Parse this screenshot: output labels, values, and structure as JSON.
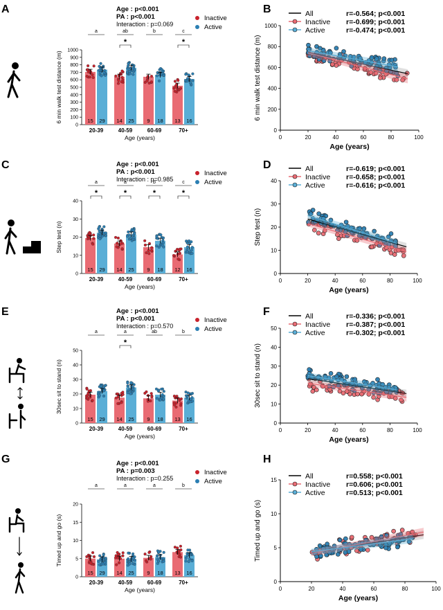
{
  "colors": {
    "inactive": "#e96b73",
    "inactive_dot": "#c8222c",
    "active": "#5aaed6",
    "active_dot": "#2b7fb3",
    "grid_axis": "#000000"
  },
  "legend_labels": {
    "inactive": "Inactive",
    "active": "Active",
    "all": "All"
  },
  "icons": [
    "walking-person-icon",
    "step-climb-icon",
    "sit-to-stand-icon",
    "timed-up-and-go-icon"
  ],
  "chart_data": [
    {
      "panel": "A",
      "type": "bar",
      "categories": [
        "20-39",
        "40-59",
        "60-69",
        "70+"
      ],
      "xlabel": "Age (years)",
      "ylabel": "6 min walk test distance (m)",
      "ylim": [
        0,
        1000
      ],
      "yticks": [
        0,
        100,
        200,
        300,
        400,
        500,
        600,
        700,
        800,
        900,
        1000
      ],
      "stats": {
        "age": "Age : p<0.001",
        "pa": "PA : p<0.001",
        "interaction": "Interaction : p=0.069"
      },
      "group_letters": [
        "a",
        "ab",
        "b",
        "c"
      ],
      "significance_stars": [
        false,
        true,
        false,
        true
      ],
      "series": [
        {
          "name": "Inactive",
          "values": [
            705,
            640,
            640,
            520
          ],
          "n": [
            "15",
            "14",
            "9",
            "13"
          ]
        },
        {
          "name": "Active",
          "values": [
            735,
            760,
            665,
            610
          ],
          "n": [
            "29",
            "25",
            "18",
            "16"
          ]
        }
      ]
    },
    {
      "panel": "B",
      "type": "scatter",
      "xlabel": "Age (years)",
      "ylabel": "6 min walk test distance (m)",
      "xlim": [
        0,
        100
      ],
      "ylim": [
        0,
        1000
      ],
      "xticks": [
        0,
        20,
        40,
        60,
        80,
        100
      ],
      "yticks": [
        0,
        200,
        400,
        600,
        800,
        1000
      ],
      "fits": [
        {
          "name": "All",
          "r_label": "r=-0.564; p<0.001",
          "x_range": [
            20,
            92
          ],
          "y_range": [
            745,
            540
          ]
        },
        {
          "name": "Inactive",
          "r_label": "r=-0.699; p<0.001",
          "x_range": [
            20,
            92
          ],
          "y_range": [
            740,
            490
          ]
        },
        {
          "name": "Active",
          "r_label": "r=-0.474; p<0.001",
          "x_range": [
            20,
            85
          ],
          "y_range": [
            760,
            605
          ]
        }
      ]
    },
    {
      "panel": "C",
      "type": "bar",
      "categories": [
        "20-39",
        "40-59",
        "60-69",
        "70+"
      ],
      "xlabel": "Age (years)",
      "ylabel": "Step test (n)",
      "ylim": [
        0,
        40
      ],
      "yticks": [
        0,
        10,
        20,
        30,
        40
      ],
      "stats": {
        "age": "Age : p<0.001",
        "pa": "PA : p<0.001",
        "interaction": "Interaction : p=0.985"
      },
      "group_letters": [
        "a",
        "a",
        "b",
        "c"
      ],
      "significance_stars": [
        true,
        true,
        true,
        true
      ],
      "series": [
        {
          "name": "Inactive",
          "values": [
            19.5,
            16.5,
            14.5,
            10.5
          ],
          "n": [
            "15",
            "14",
            "9",
            "12"
          ]
        },
        {
          "name": "Active",
          "values": [
            22.5,
            21.5,
            18,
            14.5
          ],
          "n": [
            "29",
            "25",
            "18",
            "16"
          ]
        }
      ]
    },
    {
      "panel": "D",
      "type": "scatter",
      "xlabel": "Age (years)",
      "ylabel": "Step test (n)",
      "xlim": [
        0,
        100
      ],
      "ylim": [
        0,
        40
      ],
      "xticks": [
        0,
        20,
        40,
        60,
        80,
        100
      ],
      "yticks": [
        0,
        10,
        20,
        30,
        40
      ],
      "fits": [
        {
          "name": "All",
          "r_label": "r=-0.619; p<0.001",
          "x_range": [
            20,
            92
          ],
          "y_range": [
            23.5,
            11.5
          ]
        },
        {
          "name": "Inactive",
          "r_label": "r=-0.658; p<0.001",
          "x_range": [
            20,
            92
          ],
          "y_range": [
            21.5,
            9.5
          ]
        },
        {
          "name": "Active",
          "r_label": "r=-0.616; p<0.001",
          "x_range": [
            20,
            85
          ],
          "y_range": [
            25,
            13
          ]
        }
      ]
    },
    {
      "panel": "E",
      "type": "bar",
      "categories": [
        "20-39",
        "40-59",
        "60-69",
        "70+"
      ],
      "xlabel": "Age (years)",
      "ylabel": "30sec sit to stand (n)",
      "ylim": [
        0,
        50
      ],
      "yticks": [
        0,
        10,
        20,
        30,
        40,
        50
      ],
      "stats": {
        "age": "Age : p<0.001",
        "pa": "PA : p<0.001",
        "interaction": "Interaction : p=0.570"
      },
      "group_letters": [
        "a",
        "a",
        "ab",
        "b"
      ],
      "significance_stars": [
        false,
        true,
        false,
        false
      ],
      "series": [
        {
          "name": "Inactive",
          "values": [
            19.5,
            17.5,
            17,
            15.5
          ],
          "n": [
            "15",
            "14",
            "9",
            "13"
          ]
        },
        {
          "name": "Active",
          "values": [
            22,
            24.5,
            19.5,
            17.5
          ],
          "n": [
            "29",
            "25",
            "18",
            "16"
          ]
        }
      ]
    },
    {
      "panel": "F",
      "type": "scatter",
      "xlabel": "Age (years)",
      "ylabel": "30sec sit to stand (n)",
      "xlim": [
        0,
        100
      ],
      "ylim": [
        0,
        50
      ],
      "xticks": [
        0,
        20,
        40,
        60,
        80,
        100
      ],
      "yticks": [
        0,
        10,
        20,
        30,
        40,
        50
      ],
      "fits": [
        {
          "name": "All",
          "r_label": "r=-0.336; p<0.001",
          "x_range": [
            20,
            92
          ],
          "y_range": [
            23.5,
            15.5
          ]
        },
        {
          "name": "Inactive",
          "r_label": "r=-0.387; p<0.001",
          "x_range": [
            20,
            92
          ],
          "y_range": [
            21,
            13.5
          ]
        },
        {
          "name": "Active",
          "r_label": "r=-0.302; p<0.001",
          "x_range": [
            20,
            85
          ],
          "y_range": [
            25,
            17.5
          ]
        }
      ]
    },
    {
      "panel": "G",
      "type": "bar",
      "categories": [
        "20-39",
        "40-59",
        "60-69",
        "70+"
      ],
      "xlabel": "Age (years)",
      "ylabel": "Timed up and go (s)",
      "ylim": [
        0,
        20
      ],
      "yticks": [
        0,
        5,
        10,
        15,
        20
      ],
      "stats": {
        "age": "Age : p<0.001",
        "pa": "PA : p=0.003",
        "interaction": "Interaction : p=0.255"
      },
      "group_letters": [
        "a",
        "a",
        "a",
        "b"
      ],
      "significance_stars": [
        false,
        false,
        false,
        false
      ],
      "series": [
        {
          "name": "Inactive",
          "values": [
            5.0,
            5.0,
            5.2,
            6.8
          ],
          "n": [
            "15",
            "14",
            "9",
            "13"
          ]
        },
        {
          "name": "Active",
          "values": [
            4.8,
            4.9,
            5.4,
            5.9
          ],
          "n": [
            "29",
            "25",
            "18",
            "16"
          ]
        }
      ]
    },
    {
      "panel": "H",
      "type": "scatter",
      "xlabel": "Age (years)",
      "ylabel": "Timed up and go (s)",
      "xlim": [
        0,
        100
      ],
      "ylim": [
        0,
        15
      ],
      "xticks": [
        0,
        20,
        40,
        60,
        80,
        100
      ],
      "yticks": [
        0,
        5,
        10,
        15
      ],
      "fits": [
        {
          "name": "All",
          "r_label": "r=0.558; p<0.001",
          "x_range": [
            20,
            92
          ],
          "y_range": [
            4.3,
            6.9
          ]
        },
        {
          "name": "Inactive",
          "r_label": "r=0.606; p<0.001",
          "x_range": [
            20,
            92
          ],
          "y_range": [
            4.2,
            7.3
          ]
        },
        {
          "name": "Active",
          "r_label": "r=0.513; p<0.001",
          "x_range": [
            20,
            85
          ],
          "y_range": [
            4.4,
            6.3
          ]
        }
      ]
    }
  ]
}
